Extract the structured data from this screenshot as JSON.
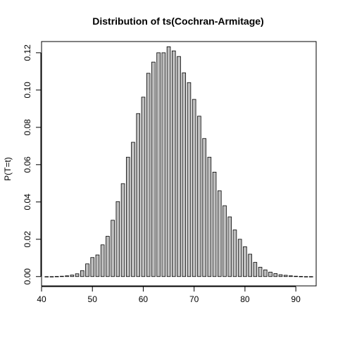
{
  "chart_data": {
    "type": "bar",
    "title": "Distribution of ts(Cochran-Armitage)",
    "xlabel": "",
    "ylabel": "P(T=t)",
    "xlim": [
      40,
      94
    ],
    "ylim": [
      0,
      0.125
    ],
    "xticks": [
      "40",
      "50",
      "60",
      "70",
      "80",
      "90"
    ],
    "yticks": [
      "0.00",
      "0.02",
      "0.04",
      "0.06",
      "0.08",
      "0.10",
      "0.12"
    ],
    "bar_fill": "#bebebe",
    "bar_stroke": "#000000",
    "x": [
      41,
      42,
      43,
      44,
      45,
      46,
      47,
      48,
      49,
      50,
      51,
      52,
      53,
      54,
      55,
      56,
      57,
      58,
      59,
      60,
      61,
      62,
      63,
      64,
      65,
      66,
      67,
      68,
      69,
      70,
      71,
      72,
      73,
      74,
      75,
      76,
      77,
      78,
      79,
      80,
      81,
      82,
      83,
      84,
      85,
      86,
      87,
      88,
      89,
      90,
      91,
      92,
      93
    ],
    "values": [
      0.0,
      0.0,
      0.0001,
      0.0002,
      0.0004,
      0.0008,
      0.0015,
      0.0032,
      0.0068,
      0.0102,
      0.0116,
      0.017,
      0.0216,
      0.0302,
      0.0402,
      0.0498,
      0.064,
      0.072,
      0.0874,
      0.0962,
      0.109,
      0.115,
      0.12,
      0.12,
      0.1232,
      0.121,
      0.118,
      0.1092,
      0.104,
      0.095,
      0.086,
      0.074,
      0.064,
      0.056,
      0.046,
      0.038,
      0.032,
      0.025,
      0.02,
      0.016,
      0.012,
      0.0076,
      0.005,
      0.0036,
      0.0024,
      0.0016,
      0.001,
      0.0007,
      0.0004,
      0.0002,
      0.0001,
      0.0,
      0.0
    ]
  }
}
